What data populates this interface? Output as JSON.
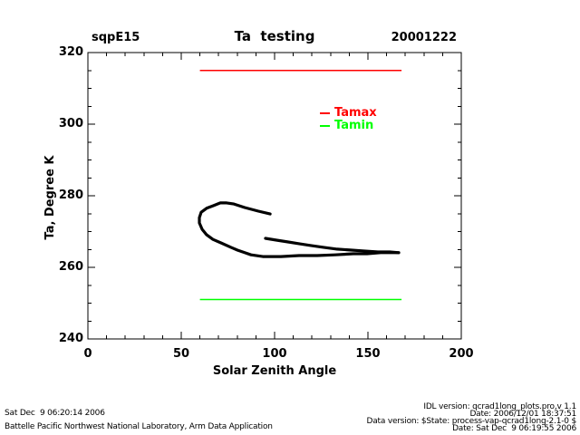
{
  "chart_data": {
    "type": "line",
    "title": "Ta  testing",
    "site_label": "sqpE15",
    "date_label": "20001222",
    "xlabel": "Solar Zenith Angle",
    "ylabel": "Ta, Degree K",
    "xlim": [
      0,
      200
    ],
    "ylim": [
      240,
      320
    ],
    "xticks": [
      0,
      50,
      100,
      150,
      200
    ],
    "yticks": [
      240,
      260,
      280,
      300,
      320
    ],
    "x_minor_step": 10,
    "y_minor_step": 5,
    "grid": false,
    "frame_color": "#000000",
    "legend": {
      "position": "inside-upper-middle",
      "entries": [
        {
          "label": "Tamax",
          "color": "#ff0000"
        },
        {
          "label": "Tamin",
          "color": "#00ff00"
        }
      ]
    },
    "series": [
      {
        "name": "Tamax",
        "type": "hline",
        "color": "#ff0000",
        "y": 315,
        "x_range": [
          60,
          168
        ],
        "line_width": 1.5
      },
      {
        "name": "Tamin",
        "type": "hline",
        "color": "#00ff00",
        "y": 251,
        "x_range": [
          60,
          168
        ],
        "line_width": 1.5
      },
      {
        "name": "Ta-main-loop",
        "type": "path",
        "color": "#000000",
        "line_width": 3.2,
        "points": [
          [
            97.6,
            274.9
          ],
          [
            91.3,
            275.7
          ],
          [
            84.0,
            276.7
          ],
          [
            78.2,
            277.7
          ],
          [
            74.3,
            278.0
          ],
          [
            70.9,
            278.0
          ],
          [
            67.0,
            277.2
          ],
          [
            63.6,
            276.5
          ],
          [
            60.7,
            275.4
          ],
          [
            59.7,
            273.9
          ],
          [
            59.7,
            272.4
          ],
          [
            61.2,
            270.6
          ],
          [
            63.6,
            269.1
          ],
          [
            67.0,
            267.8
          ],
          [
            71.4,
            266.8
          ],
          [
            75.7,
            265.8
          ],
          [
            80.1,
            264.8
          ],
          [
            84.0,
            264.1
          ],
          [
            87.4,
            263.5
          ],
          [
            93.7,
            263.0
          ],
          [
            103.4,
            263.0
          ],
          [
            113.1,
            263.3
          ],
          [
            122.8,
            263.3
          ],
          [
            132.5,
            263.5
          ],
          [
            142.2,
            263.8
          ],
          [
            149.5,
            263.8
          ],
          [
            156.8,
            264.1
          ],
          [
            163.1,
            264.1
          ],
          [
            166.5,
            264.1
          ]
        ]
      },
      {
        "name": "Ta-evening-branch",
        "type": "path",
        "color": "#000000",
        "line_width": 3.2,
        "points": [
          [
            95.1,
            268.1
          ],
          [
            101.0,
            267.6
          ],
          [
            107.3,
            267.1
          ],
          [
            113.1,
            266.6
          ],
          [
            119.4,
            266.1
          ],
          [
            126.2,
            265.6
          ],
          [
            133.5,
            265.1
          ],
          [
            141.3,
            264.8
          ],
          [
            147.1,
            264.6
          ],
          [
            155.3,
            264.3
          ],
          [
            161.7,
            264.3
          ],
          [
            166.5,
            264.1
          ]
        ]
      }
    ]
  },
  "footer": {
    "left_line1": "Sat Dec  9 06:20:14 2006",
    "left_line2": "Battelle Pacific Northwest National Laboratory, Arm Data Application",
    "right_line1": "IDL version: qcrad1long_plots.pro,v 1.1",
    "right_line2": "Date: 2006/12/01 18:37:51",
    "right_line3": "Data version: $State: process-vap-qcrad1long-2.1-0 $",
    "right_line4": "Date: Sat Dec  9 06:19:55 2006"
  }
}
